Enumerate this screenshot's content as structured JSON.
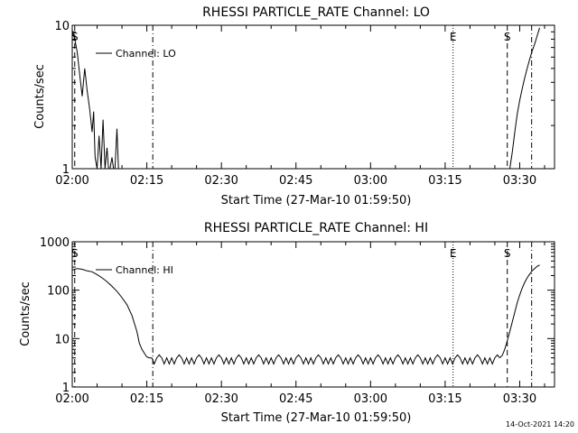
{
  "chart_data": [
    {
      "type": "line",
      "title": "RHESSI PARTICLE_RATE Channel: LO",
      "xlabel": "Start Time (27-Mar-10 01:59:50)",
      "ylabel": "Counts/sec",
      "x_unit": "minutes after 02:00",
      "xlim": [
        0,
        97
      ],
      "yscale": "log",
      "ylim": [
        1,
        10
      ],
      "x_ticks": [
        {
          "value": 0,
          "label": "02:00"
        },
        {
          "value": 15,
          "label": "02:15"
        },
        {
          "value": 30,
          "label": "02:30"
        },
        {
          "value": 45,
          "label": "02:45"
        },
        {
          "value": 60,
          "label": "03:00"
        },
        {
          "value": 75,
          "label": "03:15"
        },
        {
          "value": 90,
          "label": "03:30"
        }
      ],
      "y_ticks": [
        {
          "value": 1,
          "label": "1"
        },
        {
          "value": 10,
          "label": "10"
        }
      ],
      "legend": {
        "label": "Channel: LO",
        "position": "top-left"
      },
      "markers": [
        {
          "x": 0.5,
          "label": "S",
          "style": "dashed"
        },
        {
          "x": 16.2,
          "label": "",
          "style": "dashdot"
        },
        {
          "x": 76.6,
          "label": "E",
          "style": "dotted"
        },
        {
          "x": 87.5,
          "label": "S",
          "style": "dashed"
        },
        {
          "x": 92.4,
          "label": "",
          "style": "dashdot"
        }
      ],
      "series": [
        {
          "name": "Channel: LO",
          "x": [
            0.0,
            0.5,
            1.0,
            1.5,
            2.0,
            2.5,
            3.0,
            3.5,
            4.0,
            4.3,
            4.6,
            5.0,
            5.4,
            5.8,
            6.2,
            6.6,
            7.0,
            7.3,
            7.6,
            8.0,
            8.3,
            8.6,
            9.0,
            9.3,
            9.6
          ],
          "y": [
            9.2,
            8.0,
            6.5,
            4.5,
            3.2,
            5.0,
            3.5,
            2.6,
            1.8,
            2.5,
            1.2,
            1.0,
            1.7,
            1.0,
            2.2,
            1.0,
            1.4,
            1.0,
            1.0,
            1.2,
            1.0,
            1.0,
            1.9,
            1.0,
            1.0
          ]
        },
        {
          "name": "Channel: LO (rise)",
          "x": [
            88.0,
            88.5,
            89.0,
            89.5,
            90.0,
            90.5,
            91.0,
            91.5,
            92.0,
            92.5,
            93.0,
            93.5,
            94.0
          ],
          "y": [
            1.0,
            1.3,
            1.8,
            2.4,
            3.0,
            3.6,
            4.3,
            5.0,
            5.8,
            6.6,
            7.4,
            8.4,
            9.6
          ]
        }
      ]
    },
    {
      "type": "line",
      "title": "RHESSI PARTICLE_RATE Channel: HI",
      "xlabel": "Start Time (27-Mar-10 01:59:50)",
      "ylabel": "Counts/sec",
      "x_unit": "minutes after 02:00",
      "xlim": [
        0,
        97
      ],
      "yscale": "log",
      "ylim": [
        1,
        1000
      ],
      "x_ticks": [
        {
          "value": 0,
          "label": "02:00"
        },
        {
          "value": 15,
          "label": "02:15"
        },
        {
          "value": 30,
          "label": "02:30"
        },
        {
          "value": 45,
          "label": "02:45"
        },
        {
          "value": 60,
          "label": "03:00"
        },
        {
          "value": 75,
          "label": "03:15"
        },
        {
          "value": 90,
          "label": "03:30"
        }
      ],
      "y_ticks": [
        {
          "value": 1,
          "label": "1"
        },
        {
          "value": 10,
          "label": "10"
        },
        {
          "value": 100,
          "label": "100"
        },
        {
          "value": 1000,
          "label": "1000"
        }
      ],
      "legend": {
        "label": "Channel: HI",
        "position": "top-left"
      },
      "markers": [
        {
          "x": 0.5,
          "label": "S",
          "style": "dashed"
        },
        {
          "x": 16.2,
          "label": "",
          "style": "dashdot"
        },
        {
          "x": 76.6,
          "label": "E",
          "style": "dotted"
        },
        {
          "x": 87.5,
          "label": "S",
          "style": "dashed"
        },
        {
          "x": 92.4,
          "label": "",
          "style": "dashdot"
        }
      ],
      "series": [
        {
          "name": "Channel: HI",
          "x": [
            0.0,
            1.0,
            2.0,
            3.0,
            4.0,
            5.0,
            6.0,
            7.0,
            8.0,
            9.0,
            10.0,
            11.0,
            12.0,
            13.0,
            13.5,
            14.0,
            14.5,
            15.0,
            15.5,
            16.0
          ],
          "y": [
            260,
            280,
            270,
            250,
            240,
            210,
            180,
            150,
            120,
            95,
            70,
            50,
            30,
            14,
            8,
            6,
            5,
            4.2,
            4.0,
            4.0
          ],
          "baseline": {
            "x_start": 16.0,
            "x_end": 86.0,
            "value": 4.0,
            "dip_min": 3.0,
            "spike_max": 4.6
          }
        },
        {
          "name": "Channel: HI (rise)",
          "x": [
            86.0,
            86.5,
            87.0,
            87.5,
            88.0,
            88.5,
            89.0,
            89.5,
            90.0,
            90.5,
            91.0,
            91.5,
            92.0,
            92.5,
            93.0,
            93.5,
            94.0
          ],
          "y": [
            4.0,
            4.5,
            6.0,
            9.0,
            14,
            22,
            35,
            55,
            80,
            110,
            145,
            180,
            215,
            250,
            280,
            310,
            330
          ]
        }
      ]
    }
  ],
  "footer": {
    "timestamp": "14-Oct-2021 14:20"
  }
}
